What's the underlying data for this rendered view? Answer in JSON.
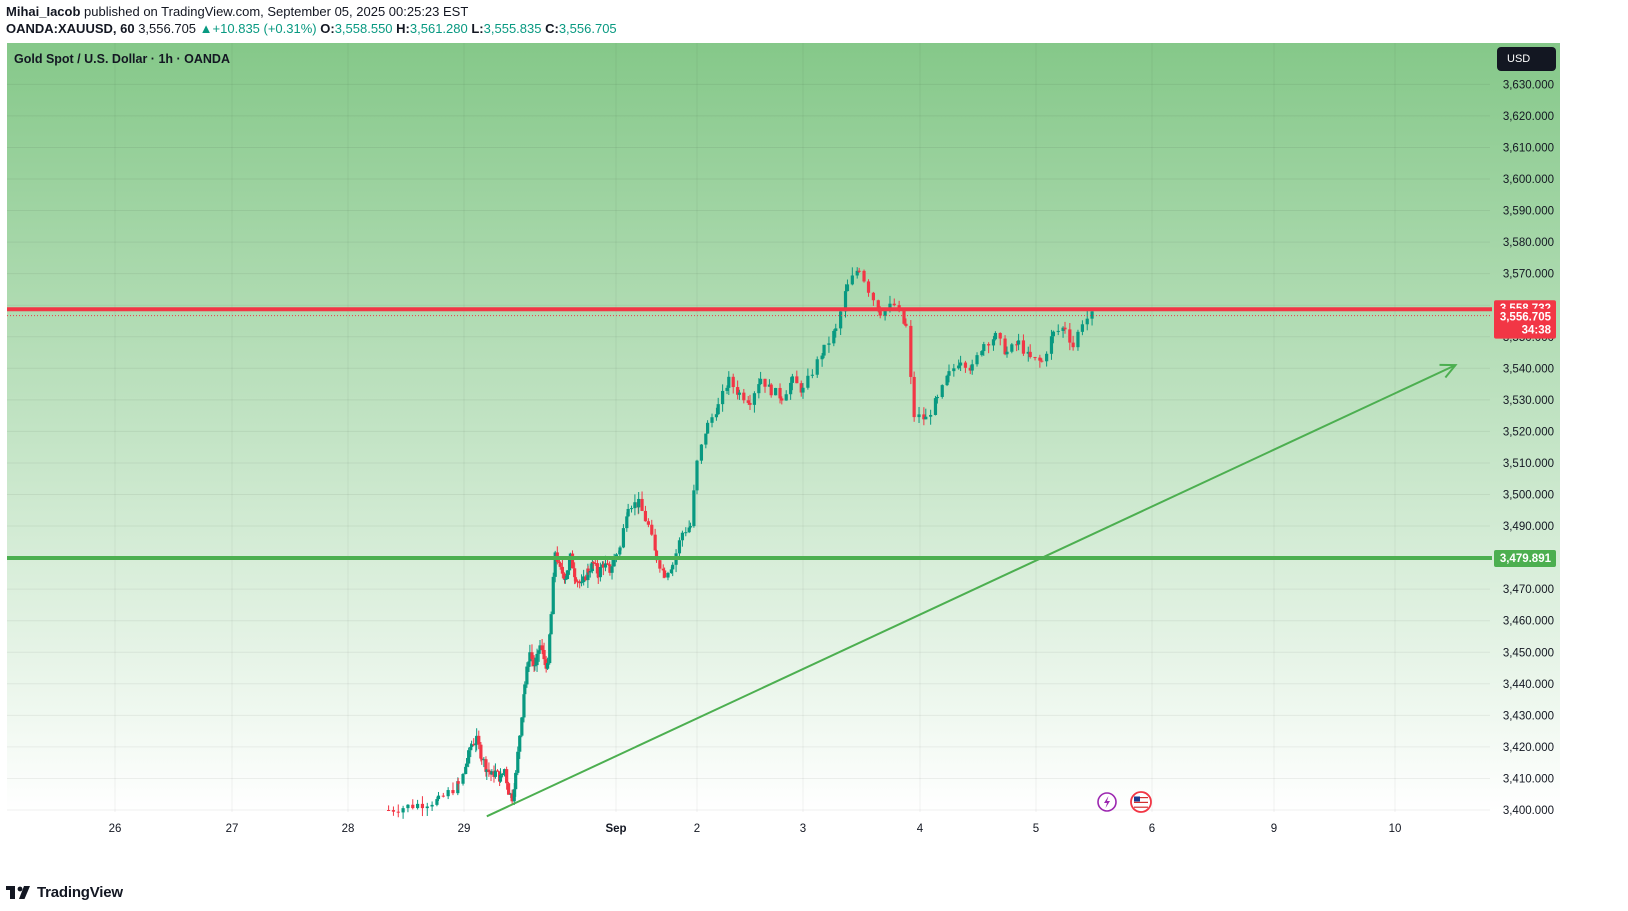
{
  "header": {
    "author": "Mihai_Iacob",
    "published_text": "published on TradingView.com, September 05, 2025 00:25:23 EST",
    "symbol": "OANDA:XAUUSD, 60",
    "last_price": "3,556.705",
    "change": "+10.835 (+0.31%)",
    "open_label": "O:",
    "open": "3,558.550",
    "high_label": "H:",
    "high": "3,561.280",
    "low_label": "L:",
    "low": "3,555.835",
    "close_label": "C:",
    "close": "3,556.705"
  },
  "chart_title": "Gold Spot / U.S. Dollar · 1h · OANDA",
  "currency_badge": "USD",
  "price_labels": {
    "resistance": "3,558.732",
    "current": "3,556.705",
    "countdown": "34:38",
    "support": "3,479.891"
  },
  "logo_text": "TradingView",
  "colors": {
    "up": "#089981",
    "down": "#f23645",
    "resistance_line": "#f23645",
    "support_line": "#4caf50",
    "trend_line": "#4caf50",
    "bg_top": "#85c889",
    "bg_bottom": "#ffffff"
  },
  "icons": [
    "lightning-icon",
    "us-flag-icon"
  ],
  "chart_data": {
    "type": "candlestick",
    "title": "Gold Spot / U.S. Dollar · 1h · OANDA",
    "ylim": [
      3400,
      3635
    ],
    "y_ticks": [
      "3,400.000",
      "3,410.000",
      "3,420.000",
      "3,430.000",
      "3,440.000",
      "3,450.000",
      "3,460.000",
      "3,470.000",
      "3,480.000",
      "3,490.000",
      "3,500.000",
      "3,510.000",
      "3,520.000",
      "3,530.000",
      "3,540.000",
      "3,550.000",
      "3,560.000",
      "3,570.000",
      "3,580.000",
      "3,590.000",
      "3,600.000",
      "3,610.000",
      "3,620.000",
      "3,630.000"
    ],
    "y_tick_values": [
      3400,
      3410,
      3420,
      3430,
      3440,
      3450,
      3460,
      3470,
      3480,
      3490,
      3500,
      3510,
      3520,
      3530,
      3540,
      3550,
      3560,
      3570,
      3580,
      3590,
      3600,
      3610,
      3620,
      3630
    ],
    "x_ticks": [
      {
        "label": "26",
        "day": 26
      },
      {
        "label": "27",
        "day": 27
      },
      {
        "label": "28",
        "day": 28
      },
      {
        "label": "29",
        "day": 29
      },
      {
        "label": "Sep",
        "day": 32
      },
      {
        "label": "2",
        "day": 33
      },
      {
        "label": "3",
        "day": 34
      },
      {
        "label": "4",
        "day": 35
      },
      {
        "label": "5",
        "day": 36
      },
      {
        "label": "6",
        "day": 37
      },
      {
        "label": "9",
        "day": 38
      },
      {
        "label": "10",
        "day": 39
      }
    ],
    "key_levels": [
      {
        "name": "resistance",
        "value": 3558.732
      },
      {
        "name": "support",
        "value": 3479.891
      }
    ],
    "trend_line": {
      "from": [
        29.45,
        3398
      ],
      "to": [
        39.5,
        3541
      ]
    },
    "candle_path": [
      [
        28.35,
        3400
      ],
      [
        28.78,
        3403
      ],
      [
        28.95,
        3408
      ],
      [
        29.05,
        3415
      ],
      [
        29.15,
        3421
      ],
      [
        29.25,
        3422
      ],
      [
        29.35,
        3417
      ],
      [
        29.45,
        3413
      ],
      [
        29.55,
        3411
      ],
      [
        29.62,
        3412
      ],
      [
        29.72,
        3410
      ],
      [
        29.8,
        3413
      ],
      [
        29.88,
        3406
      ],
      [
        29.95,
        3404
      ],
      [
        30.02,
        3411
      ],
      [
        30.1,
        3424
      ],
      [
        30.2,
        3440
      ],
      [
        30.3,
        3450
      ],
      [
        30.4,
        3445
      ],
      [
        30.5,
        3452
      ],
      [
        30.58,
        3448
      ],
      [
        30.65,
        3445
      ],
      [
        30.72,
        3462
      ],
      [
        30.8,
        3482
      ],
      [
        30.9,
        3476
      ],
      [
        31.0,
        3474
      ],
      [
        31.1,
        3480
      ],
      [
        31.2,
        3474
      ],
      [
        31.32,
        3471
      ],
      [
        31.45,
        3476
      ],
      [
        31.55,
        3478
      ],
      [
        31.65,
        3475
      ],
      [
        31.75,
        3478
      ],
      [
        31.88,
        3476
      ],
      [
        32.05,
        3483
      ],
      [
        32.15,
        3497
      ],
      [
        32.28,
        3497
      ],
      [
        32.4,
        3490
      ],
      [
        32.5,
        3480
      ],
      [
        32.6,
        3475
      ],
      [
        32.7,
        3478
      ],
      [
        32.82,
        3488
      ],
      [
        32.92,
        3490
      ],
      [
        33.0,
        3510
      ],
      [
        33.1,
        3522
      ],
      [
        33.2,
        3528
      ],
      [
        33.3,
        3536
      ],
      [
        33.4,
        3532
      ],
      [
        33.5,
        3530
      ],
      [
        33.6,
        3537
      ],
      [
        33.7,
        3533
      ],
      [
        33.8,
        3531
      ],
      [
        33.9,
        3536
      ],
      [
        34.0,
        3533
      ],
      [
        34.08,
        3539
      ],
      [
        34.18,
        3546
      ],
      [
        34.28,
        3552
      ],
      [
        34.38,
        3566
      ],
      [
        34.48,
        3572
      ],
      [
        34.56,
        3565
      ],
      [
        34.66,
        3558
      ],
      [
        34.78,
        3560
      ],
      [
        34.88,
        3553
      ],
      [
        34.95,
        3525
      ],
      [
        35.05,
        3524
      ],
      [
        35.15,
        3530
      ],
      [
        35.25,
        3538
      ],
      [
        35.35,
        3543
      ],
      [
        35.45,
        3540
      ],
      [
        35.55,
        3548
      ],
      [
        35.65,
        3550
      ],
      [
        35.75,
        3545
      ],
      [
        35.85,
        3548
      ],
      [
        35.95,
        3543
      ],
      [
        36.05,
        3542
      ],
      [
        36.15,
        3551
      ],
      [
        36.25,
        3553
      ],
      [
        36.32,
        3547
      ],
      [
        36.4,
        3555
      ],
      [
        36.5,
        3557
      ]
    ]
  }
}
